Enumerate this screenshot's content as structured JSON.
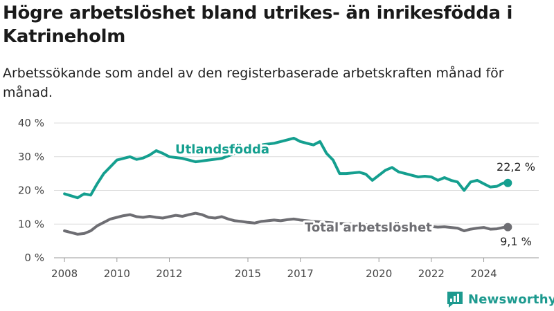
{
  "title": "Högre arbetslöshet bland utrikes- än inrikesfödda i Katrineholm",
  "subtitle": "Arbetssökande som andel av den registerbaserade arbetskraften månad för månad.",
  "brand": "Newsworthy",
  "colors": {
    "utlandsfodda": "#149f8f",
    "total": "#6e6e73",
    "grid": "#dcdcdc",
    "brand": "#1d9a8f"
  },
  "chart_data": {
    "type": "line",
    "title": "Högre arbetslöshet bland utrikes- än inrikesfödda i Katrineholm",
    "subtitle": "Arbetssökande som andel av den registerbaserade arbetskraften månad för månad.",
    "ylim": [
      0,
      40
    ],
    "y_ticks": [
      0,
      10,
      20,
      30,
      40
    ],
    "y_tick_labels": [
      "0 %",
      "10 %",
      "20 %",
      "30 %",
      "40 %"
    ],
    "x_ticks": [
      2008,
      2010,
      2012,
      2015,
      2017,
      2020,
      2022,
      2024
    ],
    "x_tick_labels": [
      "2008",
      "2010",
      "2012",
      "2015",
      "2017",
      "2020",
      "2022",
      "2024"
    ],
    "grid": true,
    "series": [
      {
        "name": "Utlandsfödda",
        "end_label": "22,2 %",
        "x": [
          2008.0,
          2008.5,
          2008.75,
          2009.0,
          2009.25,
          2009.5,
          2009.75,
          2010.0,
          2010.25,
          2010.5,
          2010.75,
          2011.0,
          2011.25,
          2011.5,
          2011.75,
          2012.0,
          2012.5,
          2013.0,
          2013.5,
          2014.0,
          2014.5,
          2015.0,
          2015.5,
          2016.0,
          2016.5,
          2016.75,
          2017.0,
          2017.25,
          2017.5,
          2017.75,
          2018.0,
          2018.25,
          2018.5,
          2018.75,
          2019.0,
          2019.25,
          2019.5,
          2019.75,
          2020.0,
          2020.25,
          2020.5,
          2020.75,
          2021.0,
          2021.25,
          2021.5,
          2021.75,
          2022.0,
          2022.25,
          2022.5,
          2022.75,
          2023.0,
          2023.25,
          2023.5,
          2023.75,
          2024.0,
          2024.25,
          2024.5,
          2024.75,
          2024.92
        ],
        "values": [
          19.0,
          17.8,
          19.0,
          18.6,
          22.0,
          25.0,
          27.0,
          29.0,
          29.5,
          30.0,
          29.2,
          29.6,
          30.5,
          31.8,
          31.0,
          30.0,
          29.5,
          28.5,
          29.0,
          29.5,
          31.0,
          32.5,
          33.5,
          34.0,
          35.0,
          35.5,
          34.5,
          34.0,
          33.5,
          34.5,
          31.0,
          29.0,
          25.0,
          25.0,
          25.2,
          25.4,
          24.8,
          23.0,
          24.5,
          26.0,
          26.8,
          25.5,
          25.0,
          24.5,
          24.0,
          24.2,
          24.0,
          23.0,
          23.8,
          23.0,
          22.5,
          20.0,
          22.5,
          23.0,
          22.0,
          21.0,
          21.2,
          22.2,
          22.2
        ]
      },
      {
        "name": "Total arbetslöshet",
        "end_label": "9,1 %",
        "x": [
          2008.0,
          2008.25,
          2008.5,
          2008.75,
          2009.0,
          2009.25,
          2009.5,
          2009.75,
          2010.0,
          2010.25,
          2010.5,
          2010.75,
          2011.0,
          2011.25,
          2011.5,
          2011.75,
          2012.0,
          2012.25,
          2012.5,
          2012.75,
          2013.0,
          2013.25,
          2013.5,
          2013.75,
          2014.0,
          2014.25,
          2014.5,
          2014.75,
          2015.0,
          2015.25,
          2015.5,
          2015.75,
          2016.0,
          2016.25,
          2016.5,
          2016.75,
          2017.0,
          2017.5,
          2018.0,
          2018.5,
          2019.0,
          2019.5,
          2020.0,
          2020.5,
          2021.0,
          2021.25,
          2021.5,
          2021.75,
          2022.0,
          2022.25,
          2022.5,
          2022.75,
          2023.0,
          2023.25,
          2023.5,
          2023.75,
          2024.0,
          2024.25,
          2024.5,
          2024.75,
          2024.92
        ],
        "values": [
          8.0,
          7.5,
          7.0,
          7.2,
          8.0,
          9.5,
          10.5,
          11.5,
          12.0,
          12.5,
          12.8,
          12.2,
          12.0,
          12.3,
          12.0,
          11.8,
          12.2,
          12.6,
          12.3,
          12.8,
          13.2,
          12.8,
          12.0,
          11.8,
          12.2,
          11.5,
          11.0,
          10.8,
          10.5,
          10.3,
          10.8,
          11.0,
          11.2,
          11.0,
          11.3,
          11.5,
          11.2,
          10.8,
          10.5,
          10.2,
          10.0,
          9.8,
          9.6,
          9.5,
          9.5,
          9.4,
          9.3,
          9.2,
          9.3,
          9.1,
          9.2,
          9.0,
          8.8,
          8.0,
          8.5,
          8.8,
          9.0,
          8.5,
          8.6,
          9.0,
          9.1
        ]
      }
    ]
  }
}
